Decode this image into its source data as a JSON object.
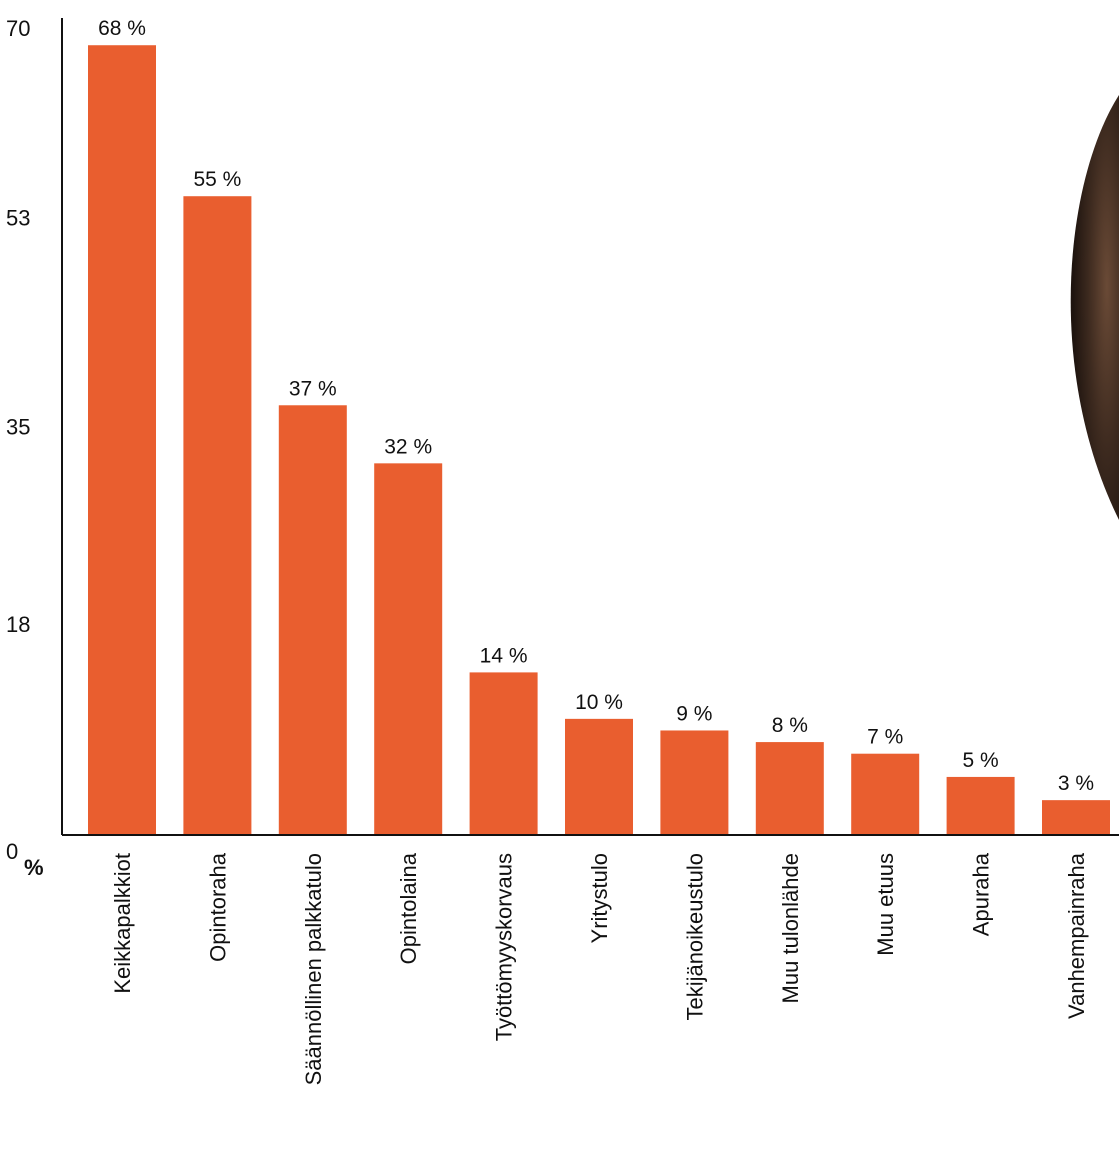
{
  "colors": {
    "bar": "#E95E2F",
    "axis": "#111111",
    "decor": "#3a2a20"
  },
  "decor": {
    "name": "dark-round-photo-edge"
  },
  "chart_data": {
    "type": "bar",
    "categories": [
      "Keikkapalkkiot",
      "Opintoraha",
      "Säännöllinen palkkatulo",
      "Opintolaina",
      "Työttömyyskorvaus",
      "Yritystulo",
      "Tekijänoikeustulo",
      "Muu tulonlähde",
      "Muu etuus",
      "Apuraha",
      "Vanhempainraha"
    ],
    "values": [
      68,
      55,
      37,
      32,
      14,
      10,
      9,
      8,
      7,
      5,
      3
    ],
    "data_labels": [
      "68 %",
      "55 %",
      "37 %",
      "32 %",
      "14 %",
      "10 %",
      "9 %",
      "8 %",
      "7 %",
      "5 %",
      "3 %"
    ],
    "yticks": [
      0,
      18,
      35,
      53,
      70
    ],
    "ylim": [
      0,
      70
    ],
    "ylabel": "%",
    "xlabel": "",
    "title": "",
    "grid": false,
    "legend": "none"
  }
}
